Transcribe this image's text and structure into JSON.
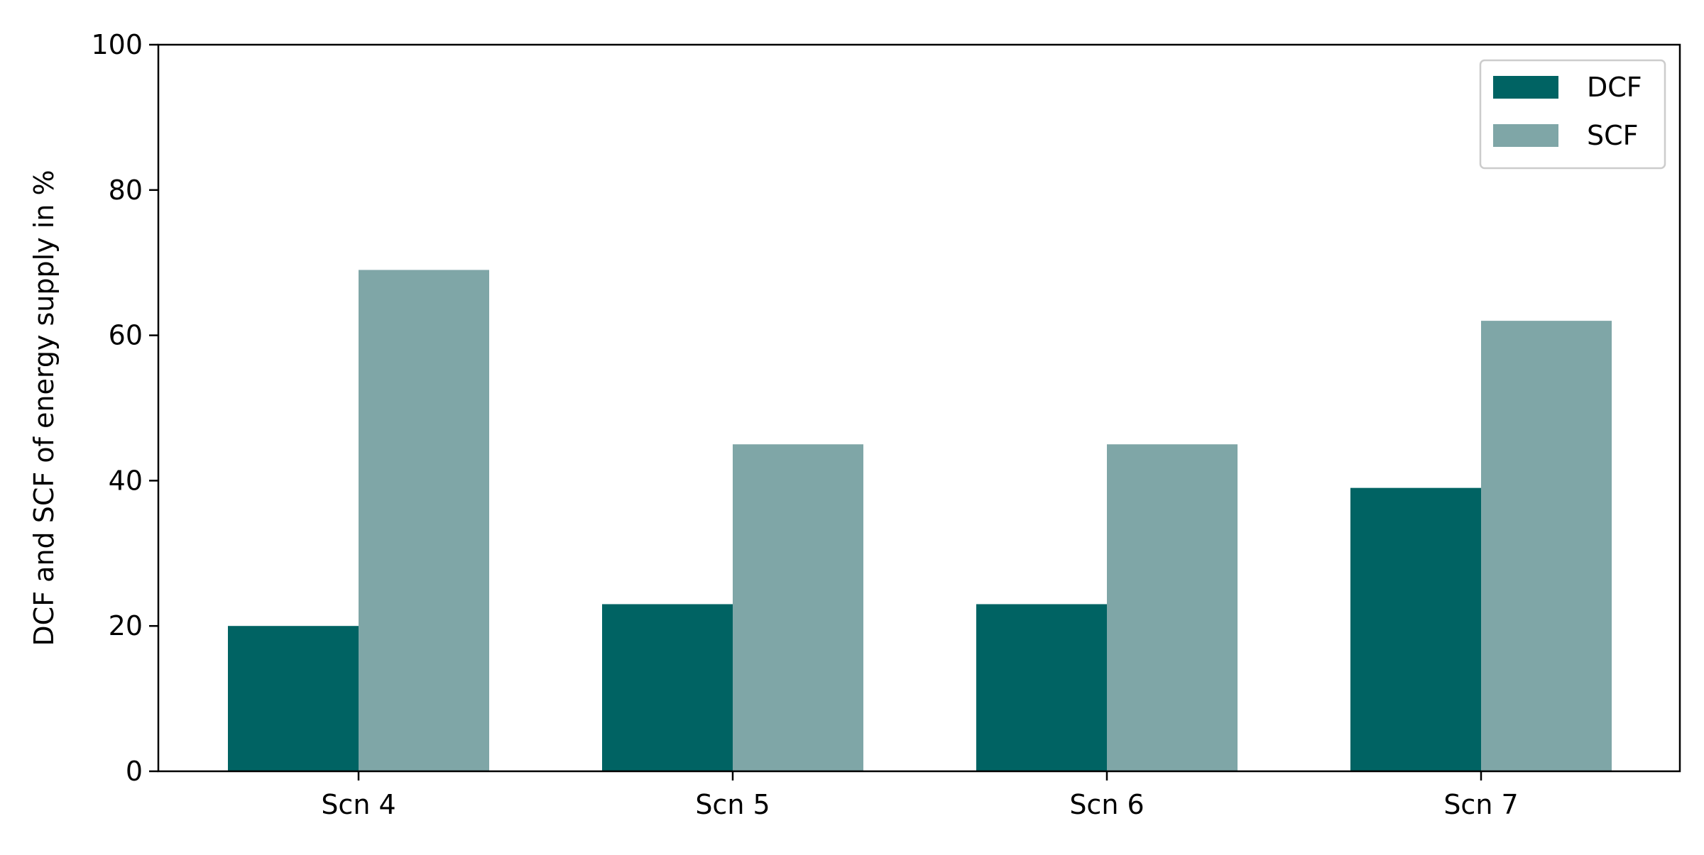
{
  "chart_data": {
    "type": "bar",
    "title": "",
    "xlabel": "",
    "ylabel": "DCF and SCF of energy supply in %",
    "categories": [
      "Scn 4",
      "Scn 5",
      "Scn 6",
      "Scn 7"
    ],
    "series": [
      {
        "name": "DCF",
        "values": [
          20,
          23,
          23,
          39
        ],
        "color": "#006363"
      },
      {
        "name": "SCF",
        "values": [
          69,
          45,
          45,
          62
        ],
        "color": "#7fa6a7"
      }
    ],
    "ylim": [
      0,
      100
    ],
    "yticks": [
      0,
      20,
      40,
      60,
      80,
      100
    ],
    "grid": false,
    "legend_position": "top-right"
  }
}
